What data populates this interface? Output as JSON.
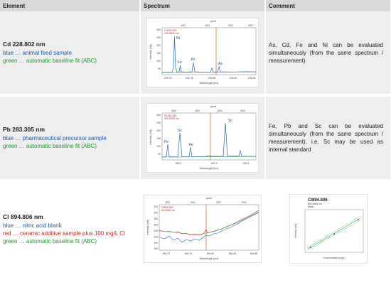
{
  "header": {
    "element": "Element",
    "spectrum": "Spectrum",
    "comment": "Comment"
  },
  "rows": [
    {
      "element": "Cd 228.802 nm",
      "lines": [
        {
          "color": "blue",
          "text": "blue … animal feed sample"
        },
        {
          "color": "green",
          "text": "green … automatic baseline fit (ABC)"
        }
      ],
      "comment": "As, Cd, Fe and Ni can be evaluated simultaneously (from the same spectrum / measurement)",
      "spectrum": {
        "top_label": "pixel",
        "top_ticks": [
          "100",
          "150",
          "200",
          "250"
        ],
        "y_ticks": [
          "300",
          "250",
          "200",
          "150",
          "100",
          "50"
        ],
        "x_ticks": [
          "228.75",
          "228.78",
          "228.80",
          "228.82",
          "228.84"
        ],
        "ylabel": "Intensity [cts]",
        "xlabel": "Wavelength [nm]",
        "legend": [
          "Cd228.802",
          "228.8020 nm"
        ],
        "peaks": [
          "Ni",
          "Fe",
          "Ni",
          "As"
        ]
      }
    },
    {
      "element": "Pb 283.305 nm",
      "lines": [
        {
          "color": "blue",
          "text": "blue … pharmaceutical precursor sample"
        },
        {
          "color": "green",
          "text": "green … automatic baseline fit (ABC)"
        }
      ],
      "comment": "Fe, Pb and Sc can be evaluated simultaneously (from the same spectrum / measurement), i.e. Sc may be used as internal standard",
      "spectrum": {
        "top_label": "pixel",
        "top_ticks": [
          "100",
          "150",
          "200",
          "250"
        ],
        "y_ticks": [
          "300",
          "250",
          "200",
          "150",
          "100",
          "50"
        ],
        "x_ticks": [
          "283.2",
          "283.3",
          "283.4"
        ],
        "ylabel": "Intensity [cts]",
        "xlabel": "Wavelength [nm]",
        "legend": [
          "Pb283.305",
          "283.3053 nm"
        ],
        "peaks": [
          "Fe",
          "Sc",
          "Fe",
          "Sc"
        ]
      }
    },
    {
      "element": "Cl 894.806 nm",
      "lines": [
        {
          "color": "blue",
          "text": "blue … nitric acid blank"
        },
        {
          "color": "red",
          "text": "red … ceramic additive sample plus 100 mg/L Cl"
        },
        {
          "color": "green",
          "text": "green … automatic baseline fit (ABC)"
        }
      ],
      "spectrum": {
        "top_label": "pixel",
        "top_ticks": [
          "100",
          "150",
          "200",
          "250"
        ],
        "y_ticks": [
          "320",
          "300",
          "280",
          "260",
          "240",
          "220",
          "200",
          "180"
        ],
        "x_ticks": [
          "894.72",
          "894.76",
          "894.80",
          "894.84",
          "894.88"
        ],
        "ylabel": "Intensity [cts]",
        "xlabel": "Wavelength [nm]",
        "legend": [
          "Cl894.806",
          "894.806 nm"
        ]
      },
      "calibration": {
        "title": "Cl894.806",
        "subtitle": "894.8060 nm",
        "note": "Mean",
        "ylabel": "Intensity [cts]",
        "xlabel": "Concentration [mg/L]"
      }
    }
  ]
}
